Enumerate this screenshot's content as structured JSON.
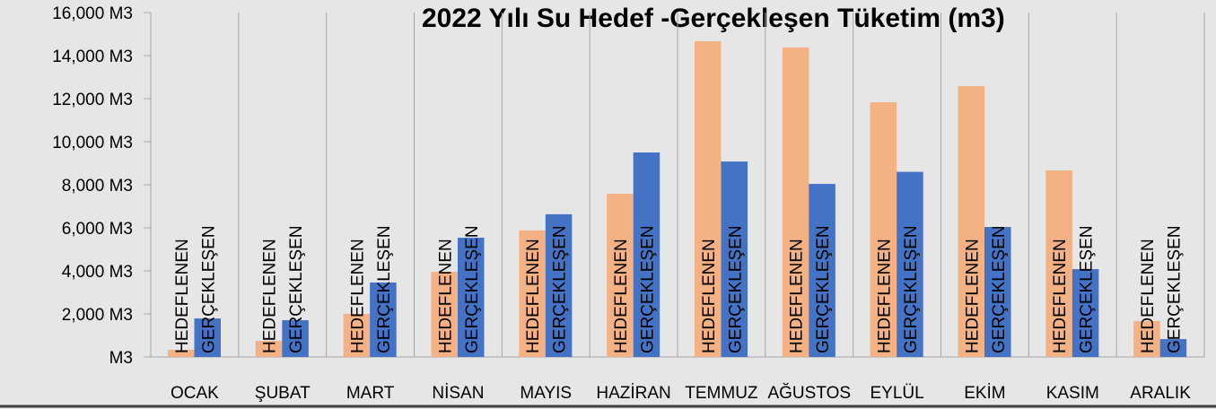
{
  "chart_data": {
    "type": "bar",
    "title": "2022 Yılı Su Hedef -Gerçekleşen Tüketim (m3)",
    "categories": [
      "OCAK",
      "ŞUBAT",
      "MART",
      "NİSAN",
      "MAYIS",
      "HAZİRAN",
      "TEMMUZ",
      "AĞUSTOS",
      "EYLÜL",
      "EKİM",
      "KASIM",
      "ARALIK"
    ],
    "series": [
      {
        "name": "HEDEFLENEN",
        "color": "#f4b183",
        "values": [
          330,
          750,
          2000,
          3960,
          5880,
          7580,
          14670,
          14380,
          11830,
          12580,
          8670,
          1670
        ]
      },
      {
        "name": "GERÇEKLEŞEN",
        "color": "#4472c4",
        "values": [
          1790,
          1710,
          3460,
          5540,
          6630,
          9500,
          9080,
          8040,
          8600,
          6040,
          4080,
          830
        ]
      }
    ],
    "ylim": [
      0,
      16000
    ],
    "yticks": [
      {
        "value": 0,
        "label": "M3"
      },
      {
        "value": 2000,
        "label": "2,000  M3"
      },
      {
        "value": 4000,
        "label": "4,000  M3"
      },
      {
        "value": 6000,
        "label": "6,000  M3"
      },
      {
        "value": 8000,
        "label": "8,000  M3"
      },
      {
        "value": 10000,
        "label": "10,000  M3"
      },
      {
        "value": 12000,
        "label": "12,000  M3"
      },
      {
        "value": 14000,
        "label": "14,000  M3"
      },
      {
        "value": 16000,
        "label": "16,000  M3"
      }
    ]
  }
}
